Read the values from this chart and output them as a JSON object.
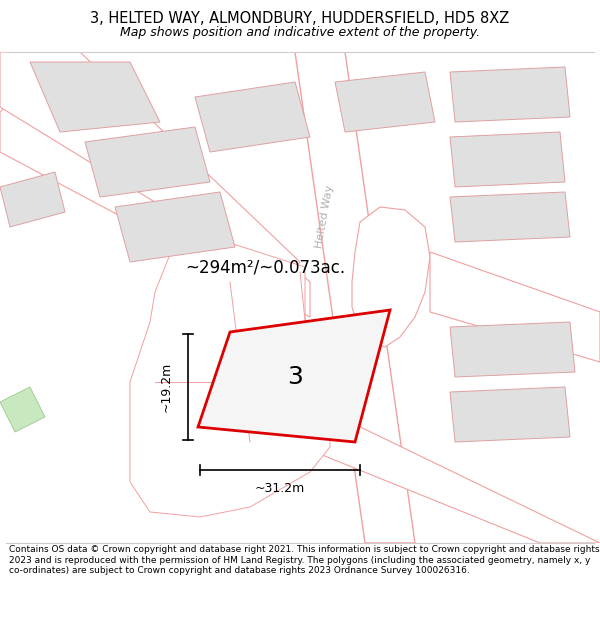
{
  "title_line1": "3, HELTED WAY, ALMONDBURY, HUDDERSFIELD, HD5 8XZ",
  "title_line2": "Map shows position and indicative extent of the property.",
  "footer": "Contains OS data © Crown copyright and database right 2021. This information is subject to Crown copyright and database rights 2023 and is reproduced with the permission of HM Land Registry. The polygons (including the associated geometry, namely x, y co-ordinates) are subject to Crown copyright and database rights 2023 Ordnance Survey 100026316.",
  "area_text": "~294m²/~0.073ac.",
  "plot_number": "3",
  "dim_width": "~31.2m",
  "dim_height": "~19.2m",
  "street_label": "Helted Way",
  "map_bg": "#ffffff",
  "plot_outline_color": "#dd0000",
  "road_color": "#f0a0a0",
  "building_fill": "#e0e0e0",
  "building_outline": "#e0a0a0",
  "parcel_fill": "#ffffff",
  "parcel_outline": "#f0a0a0",
  "title_fs": 10.5,
  "subtitle_fs": 9.0,
  "footer_fs": 6.5
}
